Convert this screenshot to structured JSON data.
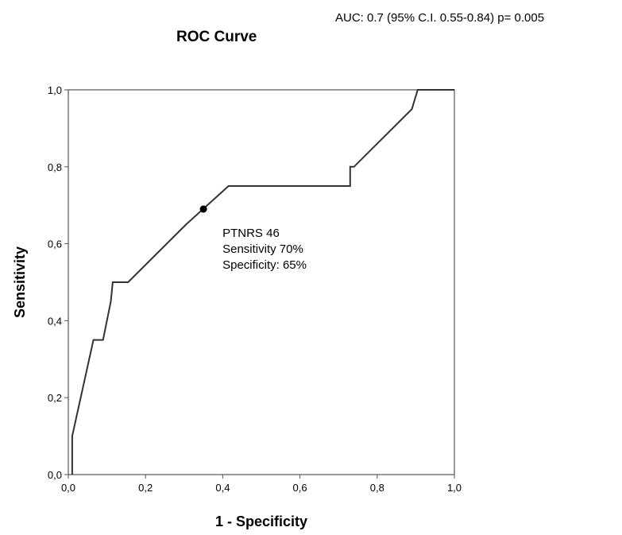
{
  "chart_data": {
    "type": "line",
    "title": "ROC Curve",
    "subtitle": "AUC: 0.7 (95% C.I. 0.55-0.84) p= 0.005",
    "xlabel": "1 - Specificity",
    "ylabel": "Sensitivity",
    "xlim": [
      0,
      1
    ],
    "ylim": [
      0,
      1
    ],
    "xticks": [
      "0,0",
      "0,2",
      "0,4",
      "0,6",
      "0,8",
      "1,0"
    ],
    "yticks": [
      "0,0",
      "0,2",
      "0,4",
      "0,6",
      "0,8",
      "1,0"
    ],
    "grid": false,
    "series": [
      {
        "x": [
          0.01,
          0.01,
          0.065,
          0.09,
          0.11,
          0.115,
          0.155,
          0.305,
          0.415,
          0.73,
          0.73,
          0.74,
          0.89,
          0.905,
          0.91,
          1.0
        ],
        "y": [
          0.0,
          0.1,
          0.35,
          0.35,
          0.45,
          0.5,
          0.5,
          0.65,
          0.75,
          0.75,
          0.8,
          0.8,
          0.95,
          1.0,
          1.0,
          1.0
        ]
      }
    ],
    "annotations": [
      {
        "point": [
          0.35,
          0.69
        ],
        "lines": [
          "PTNRS 46",
          "Sensitivity 70%",
          "Specificity: 65%"
        ]
      }
    ],
    "line_color": "#333333"
  }
}
